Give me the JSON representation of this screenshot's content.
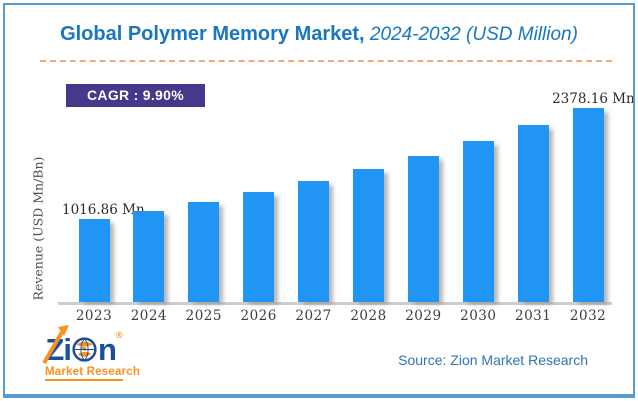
{
  "header": {
    "title_bold": "Global Polymer Memory Market,",
    "title_italic": " 2024-2032 (USD Million)"
  },
  "cagr_badge": {
    "label": "CAGR : 9.90%"
  },
  "annotations": {
    "first_bar_label": "1016.86 Mn",
    "last_bar_label": "2378.16 Mn"
  },
  "footer": {
    "source": "Source: Zion Market Research",
    "logo": {
      "z": "Z",
      "i": "i",
      "n": "n",
      "registered": "®",
      "subtitle": "Market Research"
    }
  },
  "colors": {
    "bar": "#2095F4",
    "title_text": "#1877BE",
    "badge_bg": "#44398B",
    "frame_border": "#5B9BD5",
    "dashed_rule": "#F2A878",
    "source_text": "#2E74B5",
    "logo_blue": "#1B4F9C",
    "logo_orange": "#F6921E",
    "axis_line": "#CDCDCD"
  },
  "chart_data": {
    "type": "bar",
    "title": "Global Polymer Memory Market, 2024-2032 (USD Million)",
    "categories": [
      "2023",
      "2024",
      "2025",
      "2026",
      "2027",
      "2028",
      "2029",
      "2030",
      "2031",
      "2032"
    ],
    "values": [
      1016.86,
      1117.53,
      1228.16,
      1349.75,
      1483.38,
      1630.23,
      1791.62,
      1968.99,
      2163.92,
      2378.16
    ],
    "xlabel": "",
    "ylabel": "Revenue (USD Mn/Bn)",
    "ylim": [
      0,
      2378.16
    ],
    "grid": false,
    "legend": false,
    "cagr": "9.90%",
    "data_labels": {
      "2023": "1016.86 Mn",
      "2032": "2378.16 Mn"
    }
  }
}
